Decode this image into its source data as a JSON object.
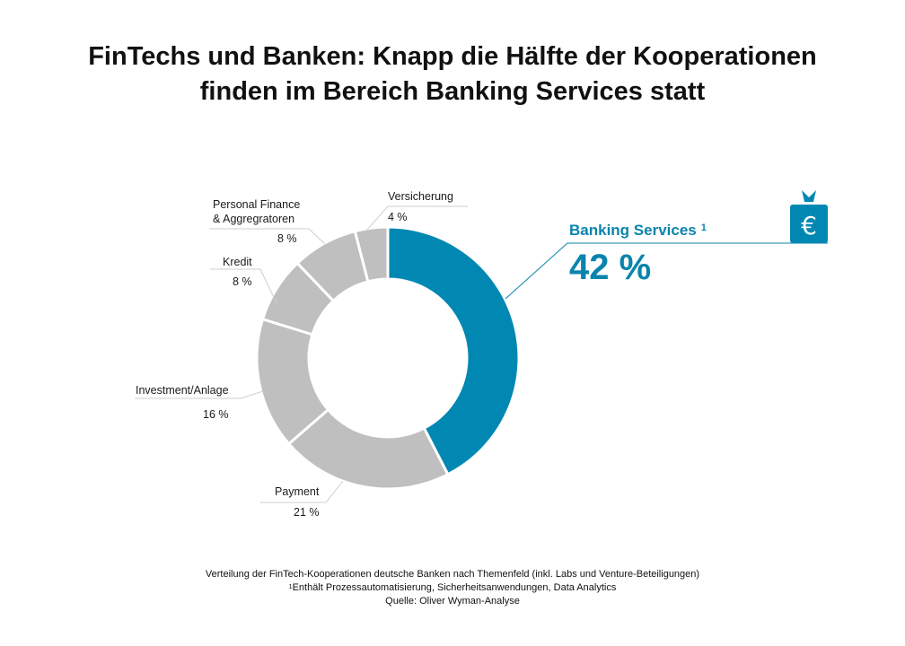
{
  "title": {
    "line1": "FinTechs und Banken: Knapp die Hälfte der Kooperationen",
    "line2": "finden im Bereich Banking Services statt"
  },
  "chart_data": {
    "type": "pie",
    "variant": "donut",
    "start": "12 o'clock, clockwise",
    "colors": {
      "highlight": "#0088b3",
      "other": "#bfbfbf",
      "callout": "#0a84ad"
    },
    "slices": [
      {
        "name": "Banking Services",
        "value": 42,
        "label": "42 %",
        "footnote_mark": "1",
        "highlight": true
      },
      {
        "name": "Payment",
        "value": 21,
        "label": "21 %"
      },
      {
        "name": "Investment/Anlage",
        "value": 16,
        "label": "16 %"
      },
      {
        "name": "Kredit",
        "value": 8,
        "label": "8 %"
      },
      {
        "name": "Personal Finance & Aggregratoren",
        "lines": [
          "Personal Finance",
          "& Aggregratoren"
        ],
        "value": 8,
        "label": "8 %"
      },
      {
        "name": "Versicherung",
        "value": 4,
        "label": "4 %"
      }
    ]
  },
  "icon": {
    "name": "money-bag-euro-icon",
    "glyph": "€",
    "color": "#0088b3"
  },
  "footer": {
    "line1": "Verteilung der  FinTech-Kooperationen deutsche Banken nach Themenfeld  (inkl. Labs und Venture-Beteiligungen)",
    "footnote_mark": "1",
    "line2": "Enthält Prozessautomatisierung, Sicherheitsanwendungen, Data Analytics",
    "line3": "Quelle: Oliver Wyman-Analyse"
  }
}
